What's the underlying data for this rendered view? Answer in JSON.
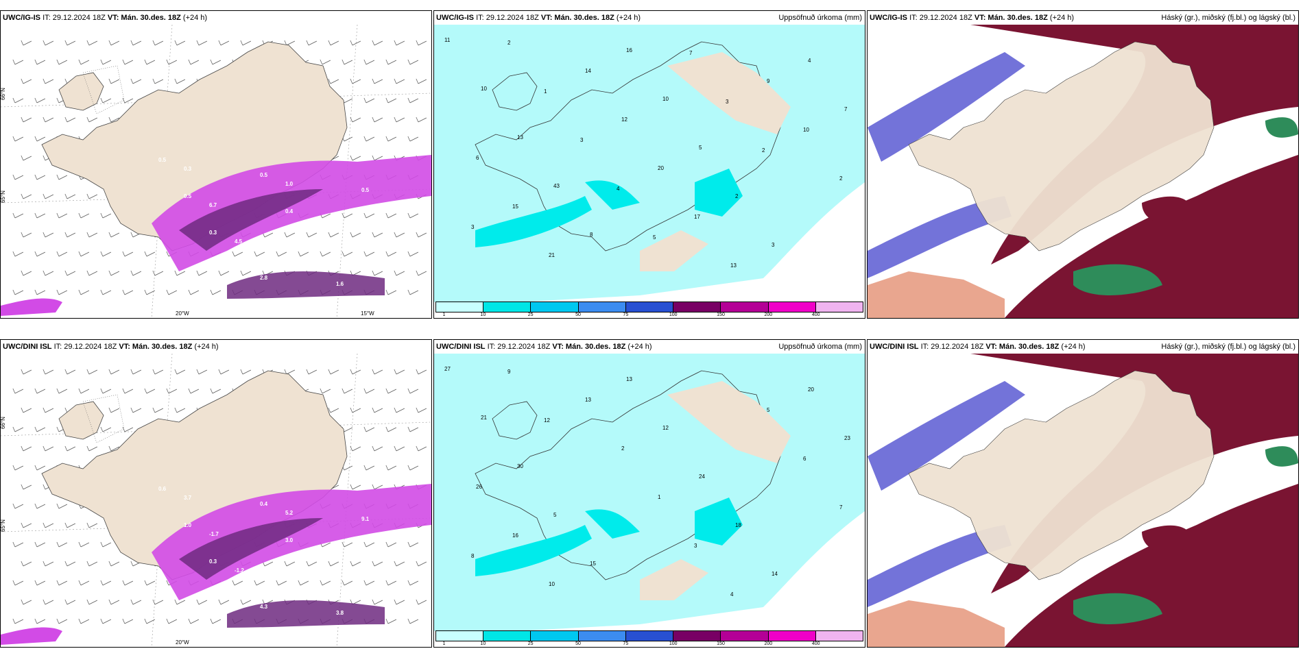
{
  "panels": [
    {
      "id": "p1",
      "model": "UWC/IG-IS",
      "issue": "IT: 29.12.2024 18Z",
      "valid": "VT: Mán. 30.des. 18Z",
      "lead": "(+24 h)",
      "right_title": "",
      "kind": "precip_rate",
      "lat_labels": [
        "66°N",
        "65°N"
      ],
      "lon_labels": [
        "20°W",
        "15°W"
      ],
      "values": [
        "0.5",
        "0.5",
        "0.3",
        "0.6",
        "0.5",
        "0.4",
        "0.3",
        "1.6",
        "0.5",
        "0.9",
        "0.3",
        "0.3",
        "6.7",
        "4.5",
        "2.8",
        "1.0",
        "5.2"
      ]
    },
    {
      "id": "p2",
      "model": "UWC/IG-IS",
      "issue": "IT: 29.12.2024 18Z",
      "valid": "VT: Mán. 30.des. 18Z",
      "lead": "(+24 h)",
      "right_title": "Uppsöfnuð úrkoma (mm)",
      "kind": "accum",
      "values": [
        "11",
        "10",
        "13",
        "43",
        "8",
        "16",
        "10",
        "5",
        "2",
        "3",
        "4",
        "7",
        "6",
        "15",
        "21",
        "14",
        "12",
        "20",
        "17",
        "13",
        "9",
        "10",
        "2",
        "3",
        "2",
        "1",
        "3",
        "4",
        "5",
        "7",
        "3",
        "2"
      ]
    },
    {
      "id": "p3",
      "model": "UWC/IG-IS",
      "issue": "IT: 29.12.2024 18Z",
      "valid": "VT: Mán. 30.des. 18Z",
      "lead": "(+24 h)",
      "right_title": "Háský (gr.), miðský (fj.bl.) og lágský (bl.)",
      "kind": "cloud"
    },
    {
      "id": "p4",
      "model": "UWC/DINI ISL",
      "issue": "IT: 29.12.2024 18Z",
      "valid": "VT: Mán. 30.des. 18Z",
      "lead": "(+24 h)",
      "right_title": "",
      "kind": "precip_rate",
      "lat_labels": [
        "66°N",
        "65°N"
      ],
      "lon_labels": [
        "20°W",
        ""
      ],
      "values": [
        "0.6",
        "1.0",
        "0.3",
        "0.6",
        "0.4",
        "3.0",
        "5.4",
        "3.8",
        "9.1",
        "2.4",
        "0.5",
        "3.7",
        "-1.7",
        "-1.2",
        "4.3",
        "5.2"
      ]
    },
    {
      "id": "p5",
      "model": "UWC/DINI ISL",
      "issue": "IT: 29.12.2024 18Z",
      "valid": "VT: Mán. 30.des. 18Z",
      "lead": "(+24 h)",
      "right_title": "Uppsöfnuð úrkoma (mm)",
      "kind": "accum",
      "values": [
        "27",
        "21",
        "30",
        "5",
        "15",
        "13",
        "12",
        "24",
        "18",
        "14",
        "20",
        "23",
        "26",
        "16",
        "10",
        "13",
        "2",
        "1",
        "3",
        "4",
        "5",
        "6",
        "7",
        "8",
        "9",
        "12"
      ]
    },
    {
      "id": "p6",
      "model": "UWC/DINI ISL",
      "issue": "IT: 29.12.2024 18Z",
      "valid": "VT: Mán. 30.des. 18Z",
      "lead": "(+24 h)",
      "right_title": "Háský (gr.), miðský (fj.bl.) og lágský (bl.)",
      "kind": "cloud"
    }
  ],
  "colorbar": {
    "ticks": [
      "1",
      "10",
      "25",
      "50",
      "75",
      "100",
      "150",
      "200",
      "400"
    ],
    "colors": [
      "#c8ffff",
      "#00e6e6",
      "#00c8f0",
      "#3c8cf0",
      "#2850d2",
      "#780064",
      "#b40096",
      "#f000c8",
      "#f0b4f0"
    ]
  },
  "colors": {
    "land": "#efe2d2",
    "cyan_light": "#b4fafa",
    "cyan": "#00ebeb",
    "magenta": "#d24be6",
    "purple_dark": "#6e2a80",
    "cloud_high": "#7a1432",
    "cloud_mid": "#5a5ad2",
    "cloud_low": "#2e8c5a",
    "cloud_orange": "#e08060"
  }
}
